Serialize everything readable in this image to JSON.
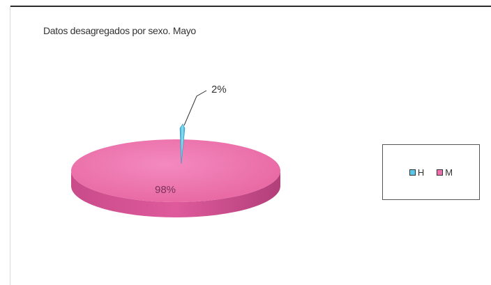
{
  "chart_data": {
    "type": "pie",
    "title": "Datos desagregados por sexo. Mayo",
    "categories": [
      "H",
      "M"
    ],
    "values": [
      2,
      98
    ],
    "data_labels": [
      "2%",
      "98%"
    ],
    "colors": [
      "#5bc8e8",
      "#ee6fae"
    ],
    "legend_position": "right",
    "three_d": true
  }
}
